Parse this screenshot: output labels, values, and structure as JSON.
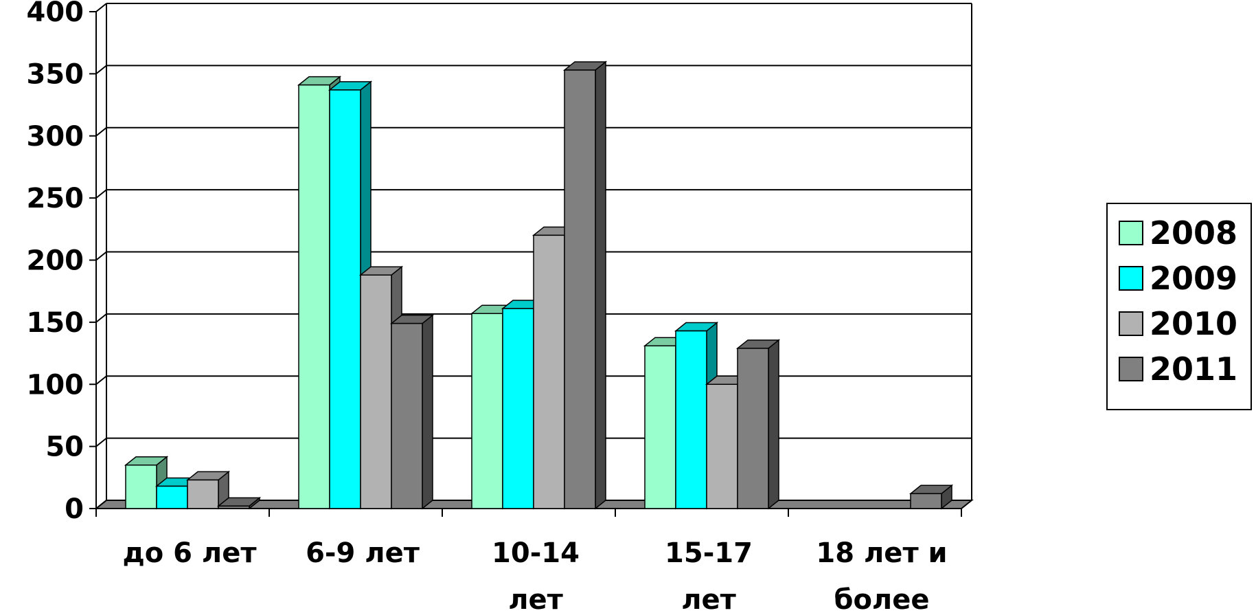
{
  "chart_data": {
    "type": "bar",
    "categories": [
      [
        "до 6 лет"
      ],
      [
        "6-9 лет"
      ],
      [
        "10-14",
        "лет"
      ],
      [
        "15-17",
        "лет"
      ],
      [
        "18 лет и",
        "более"
      ]
    ],
    "series": [
      {
        "name": "2008",
        "values": [
          35,
          341,
          157,
          131,
          0
        ],
        "color": "#99ffcc"
      },
      {
        "name": "2009",
        "values": [
          18,
          337,
          161,
          143,
          0
        ],
        "color": "#00ffff"
      },
      {
        "name": "2010",
        "values": [
          23,
          188,
          220,
          100,
          0
        ],
        "color": "#b2b2b2"
      },
      {
        "name": "2011",
        "values": [
          2,
          149,
          353,
          129,
          12
        ],
        "color": "#808080"
      }
    ],
    "ylim": [
      0,
      400
    ],
    "yticks": [
      "0",
      "50",
      "100",
      "150",
      "200",
      "250",
      "300",
      "350",
      "400"
    ],
    "grid": true,
    "legend_position": "right"
  }
}
